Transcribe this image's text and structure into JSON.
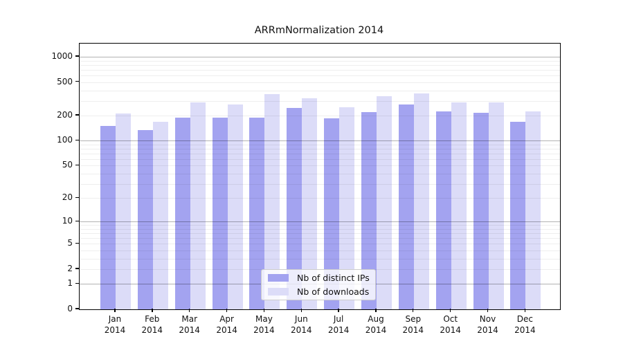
{
  "chart_data": {
    "type": "bar",
    "title": "ARRmNormalization 2014",
    "categories": [
      "Jan 2014",
      "Feb 2014",
      "Mar 2014",
      "Apr 2014",
      "May 2014",
      "Jun 2014",
      "Jul 2014",
      "Aug 2014",
      "Sep 2014",
      "Oct 2014",
      "Nov 2014",
      "Dec 2014"
    ],
    "month_labels": [
      "Jan",
      "Feb",
      "Mar",
      "Apr",
      "May",
      "Jun",
      "Jul",
      "Aug",
      "Sep",
      "Oct",
      "Nov",
      "Dec"
    ],
    "year_label": "2014",
    "series": [
      {
        "name": "Nb of distinct IPs",
        "color": "#a3a3f0",
        "values": [
          150,
          135,
          190,
          190,
          190,
          245,
          185,
          220,
          270,
          225,
          215,
          170
        ]
      },
      {
        "name": "Nb of downloads",
        "color": "#dcdcf8",
        "values": [
          210,
          170,
          285,
          270,
          360,
          320,
          250,
          340,
          365,
          285,
          285,
          225
        ]
      }
    ],
    "y_ticks": [
      0,
      1,
      2,
      5,
      10,
      20,
      50,
      100,
      200,
      500,
      1000
    ],
    "y_scale": "log(1+y)",
    "ylim": [
      0,
      1450
    ],
    "xlabel": "",
    "ylabel": "",
    "grid": "on",
    "legend_position": "lower center",
    "colors": {
      "background": "#ffffff",
      "spine": "#000000",
      "grid_minor": "#ededed",
      "grid_major": "#aaaaaa"
    }
  }
}
